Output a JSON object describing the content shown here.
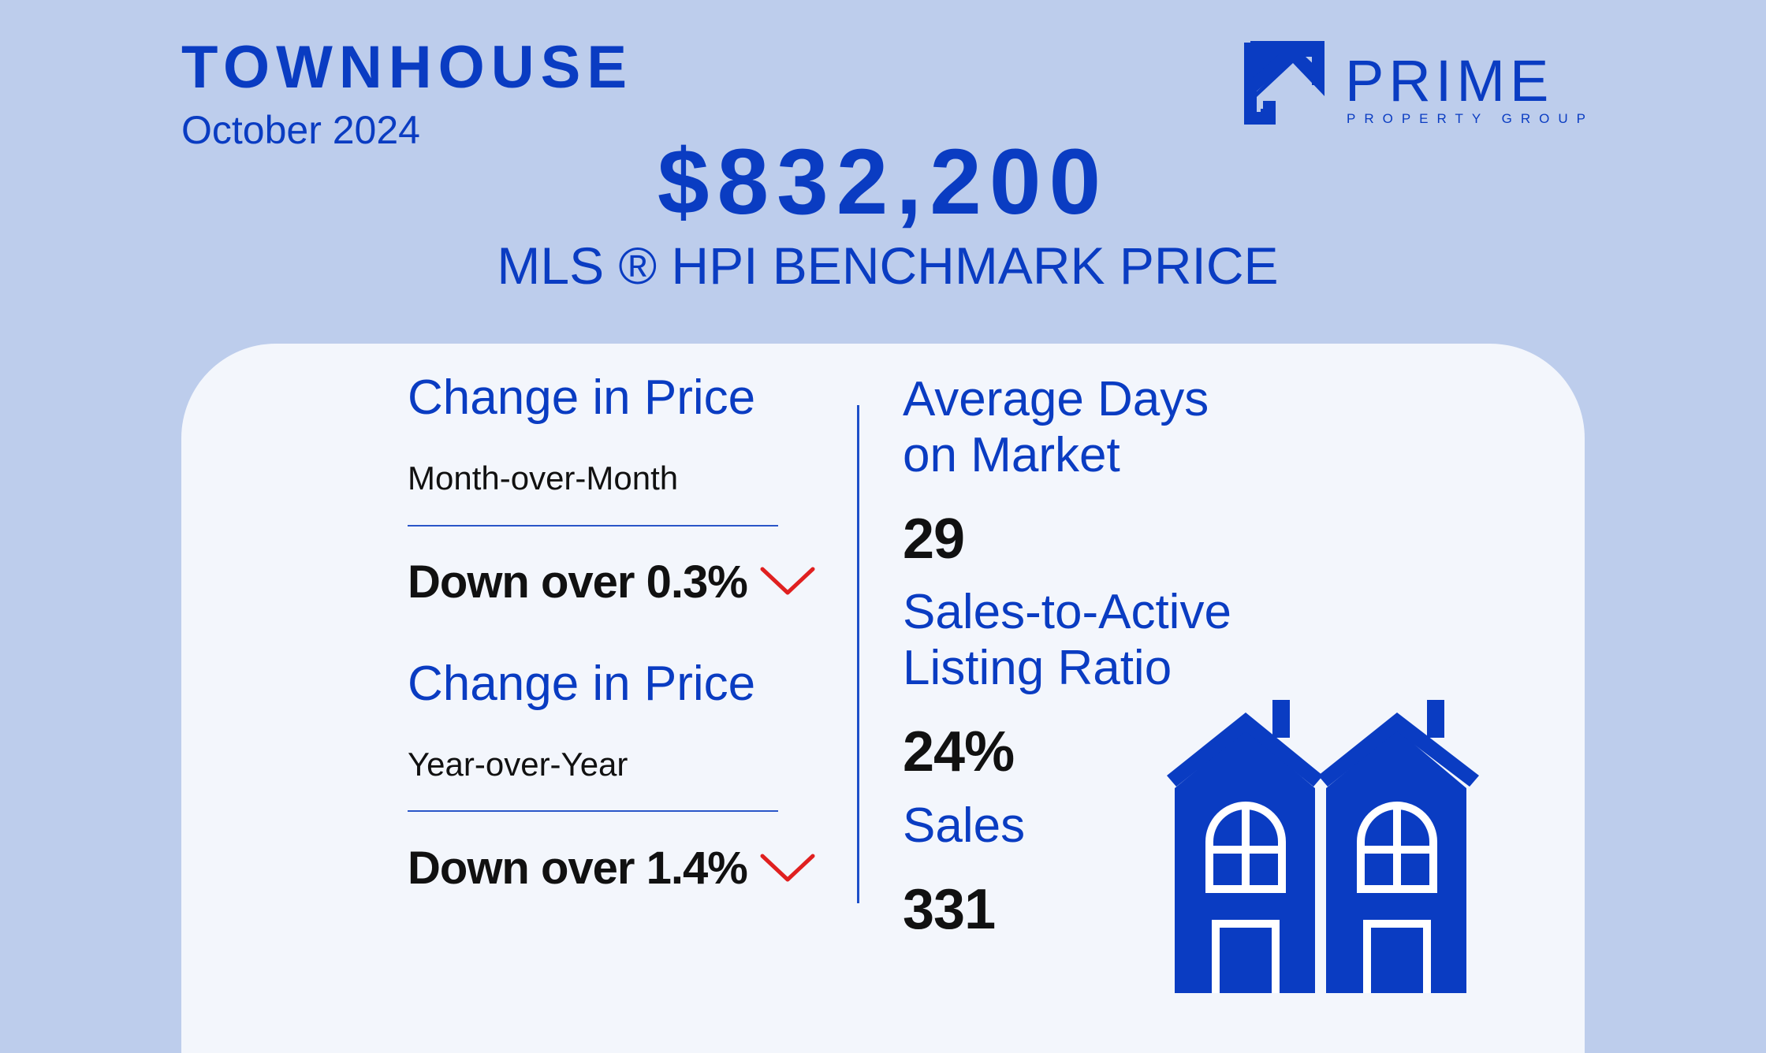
{
  "header": {
    "title": "TOWNHOUSE",
    "subtitle": "October 2024",
    "benchmark_price": "$832,200",
    "benchmark_label": "MLS ®  HPI BENCHMARK PRICE"
  },
  "logo": {
    "word": "PRIME",
    "tagline": "PROPERTY GROUP"
  },
  "left": {
    "mom": {
      "heading": "Change in Price",
      "period": "Month-over-Month",
      "value": "Down over 0.3%",
      "trend_icon": "chevron-down-icon"
    },
    "yoy": {
      "heading": "Change in Price",
      "period": "Year-over-Year",
      "value": "Down over 1.4%",
      "trend_icon": "chevron-down-icon"
    }
  },
  "right": {
    "dom": {
      "heading_line1": "Average Days",
      "heading_line2": "on Market",
      "value": "29"
    },
    "ratio": {
      "heading_line1": "Sales-to-Active",
      "heading_line2": "Listing Ratio",
      "value": "24%"
    },
    "sales": {
      "heading": "Sales",
      "value": "331"
    }
  },
  "colors": {
    "brand": "#0a3cc2",
    "background": "#bdcdec",
    "panel": "#f3f6fc",
    "down": "#e02020"
  }
}
